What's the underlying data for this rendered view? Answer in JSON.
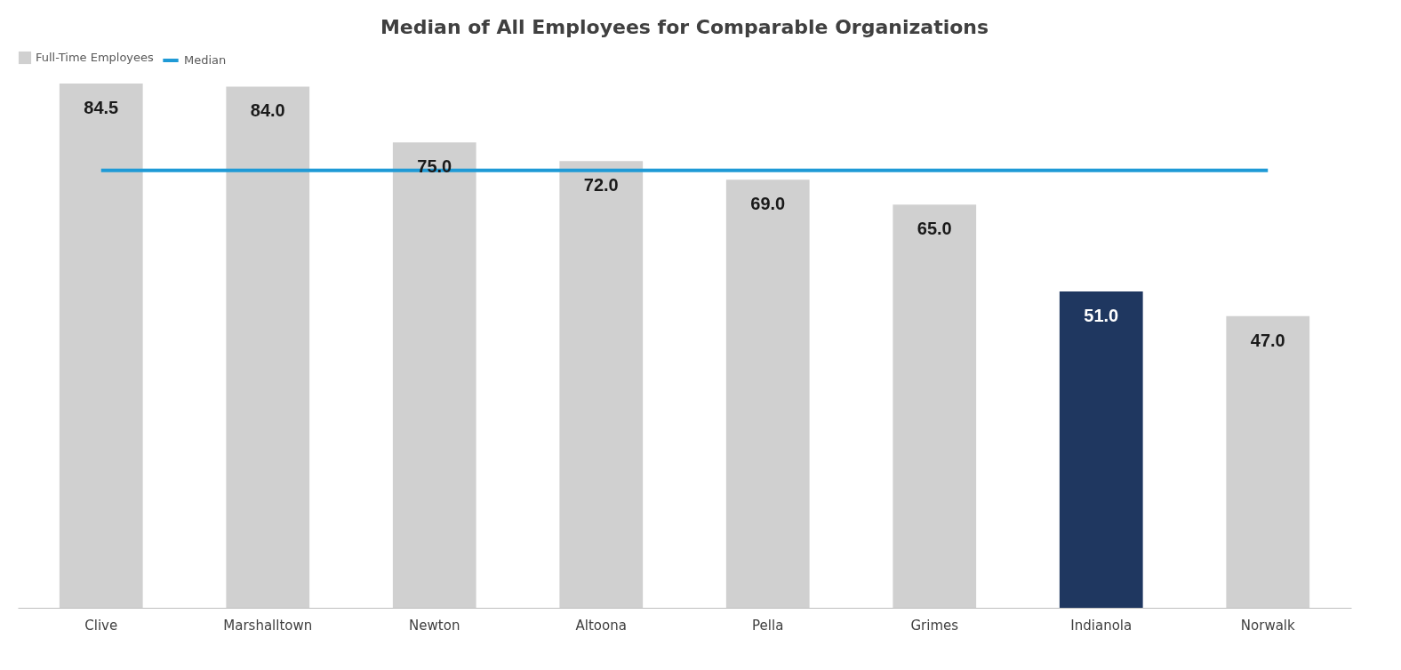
{
  "chart_data": {
    "type": "bar",
    "title": "Median of All Employees for Comparable Organizations",
    "categories": [
      "Clive",
      "Marshalltown",
      "Newton",
      "Altoona",
      "Pella",
      "Grimes",
      "Indianola",
      "Norwalk"
    ],
    "series": [
      {
        "name": "Full-Time Employees",
        "color": "#d0d0d0",
        "colors": [
          "#d0d0d0",
          "#d0d0d0",
          "#d0d0d0",
          "#d0d0d0",
          "#d0d0d0",
          "#d0d0d0",
          "#1f3760",
          "#d0d0d0"
        ],
        "values": [
          84.5,
          84.0,
          75.0,
          72.0,
          69.0,
          65.0,
          51.0,
          47.0
        ],
        "value_labels": [
          "84.5",
          "84.0",
          "75.0",
          "72.0",
          "69.0",
          "65.0",
          "51.0",
          "47.0"
        ]
      },
      {
        "name": "Median",
        "type": "line",
        "color": "#1f9ad6",
        "values": [
          70.5,
          70.5,
          70.5,
          70.5,
          70.5,
          70.5,
          70.5,
          70.5
        ]
      }
    ],
    "legend": "top"
  }
}
